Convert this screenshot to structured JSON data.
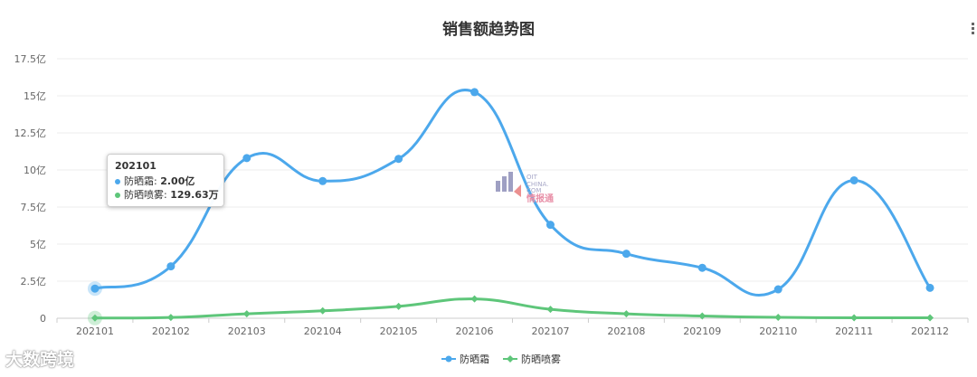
{
  "title": "销售额趋势图",
  "menu_icon": "hamburger-menu-icon",
  "watermark_text": "大数跨境",
  "center_logo_text": "OIT CHINA .COM 情报通",
  "tooltip": {
    "title": "202101",
    "rows": [
      {
        "label": "防晒霜: ",
        "value": "2.00亿",
        "color": "#4ca8ec"
      },
      {
        "label": "防晒喷雾: ",
        "value": "129.63万",
        "color": "#5ec67a"
      }
    ]
  },
  "chart_data": {
    "type": "line",
    "title": "销售额趋势图",
    "categories": [
      "202101",
      "202102",
      "202103",
      "202104",
      "202105",
      "202106",
      "202107",
      "202108",
      "202109",
      "202110",
      "202111",
      "202112"
    ],
    "y_tick_labels": [
      "0",
      "2.5亿",
      "5亿",
      "7.5亿",
      "10亿",
      "12.5亿",
      "15亿",
      "17.5亿"
    ],
    "ylim": [
      0,
      17.5
    ],
    "y_unit": "亿",
    "grid": true,
    "legend_position": "bottom-center",
    "series": [
      {
        "name": "防晒霜",
        "color": "#4ca8ec",
        "marker": "circle",
        "values": [
          2.0,
          3.5,
          10.8,
          9.25,
          10.75,
          15.25,
          6.3,
          4.35,
          3.4,
          1.95,
          9.3,
          2.05
        ]
      },
      {
        "name": "防晒喷雾",
        "color": "#5ec67a",
        "marker": "diamond",
        "values": [
          0.013,
          0.05,
          0.3,
          0.5,
          0.8,
          1.3,
          0.6,
          0.3,
          0.15,
          0.06,
          0.03,
          0.03
        ]
      }
    ]
  }
}
